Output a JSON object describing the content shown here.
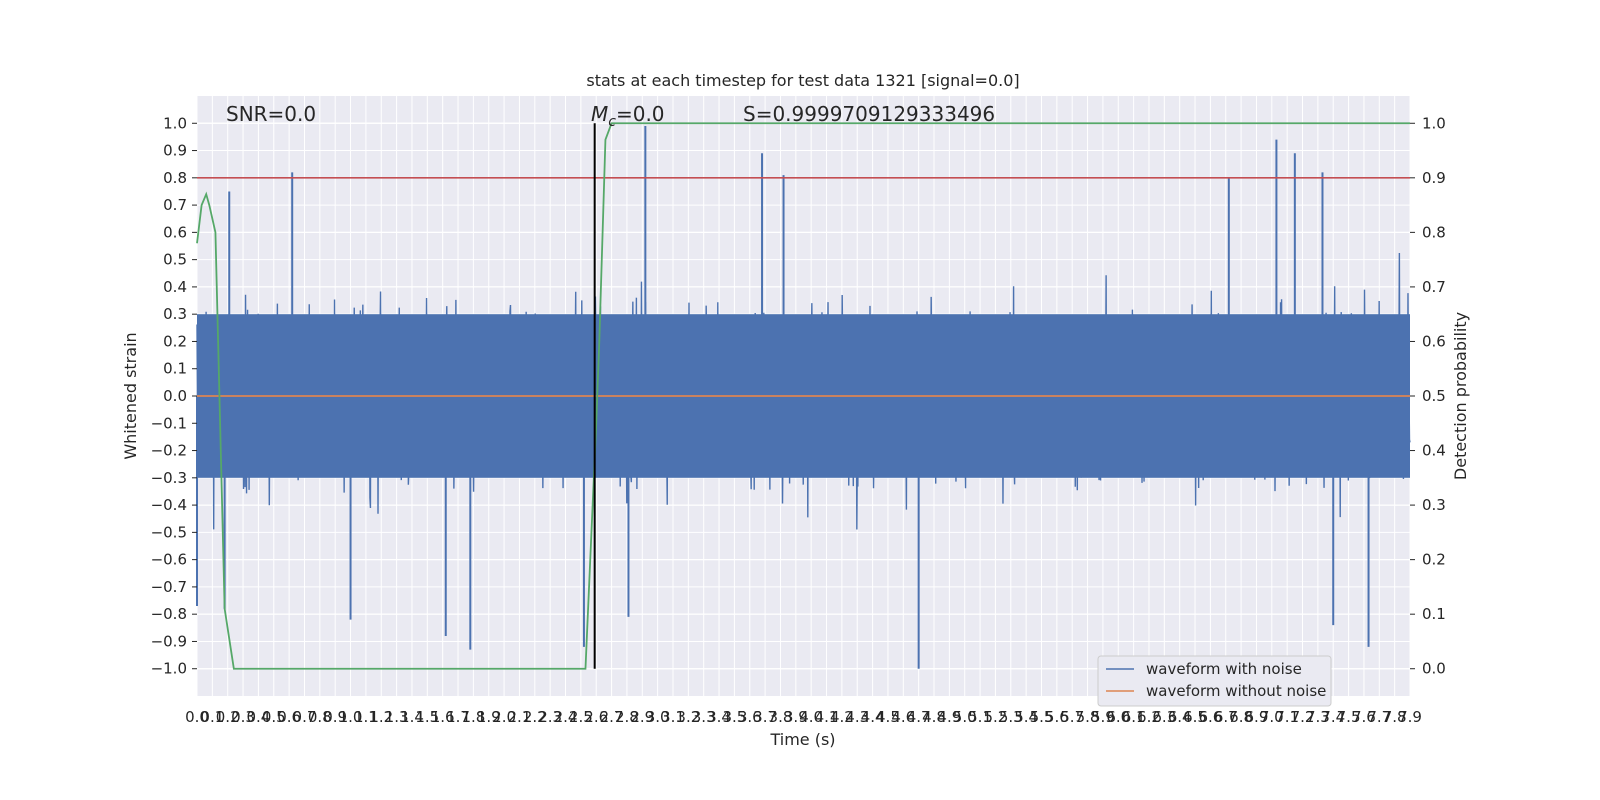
{
  "chart_data": {
    "type": "line",
    "title": "stats at each timestep for test data 1321 [signal=0.0]",
    "xlabel": "Time (s)",
    "ylabel": "Whitened strain",
    "y2label": "Detection probability",
    "xlim": [
      0.0,
      7.9
    ],
    "ylim": [
      -1.1,
      1.1
    ],
    "y2lim": [
      -0.05,
      1.05
    ],
    "x_ticks": [
      0.0,
      0.1,
      0.2,
      0.3,
      0.4,
      0.5,
      0.6,
      0.7,
      0.8,
      0.9,
      1.0,
      1.1,
      1.2,
      1.3,
      1.4,
      1.5,
      1.6,
      1.7,
      1.8,
      1.9,
      2.0,
      2.1,
      2.2,
      2.3,
      2.4,
      2.5,
      2.6,
      2.7,
      2.8,
      2.9,
      3.0,
      3.1,
      3.2,
      3.3,
      3.4,
      3.5,
      3.6,
      3.7,
      3.8,
      3.9,
      4.0,
      4.1,
      4.2,
      4.3,
      4.4,
      4.5,
      4.6,
      4.7,
      4.8,
      4.9,
      5.0,
      5.1,
      5.2,
      5.3,
      5.4,
      5.5,
      5.6,
      5.7,
      5.8,
      5.9,
      6.0,
      6.1,
      6.2,
      6.3,
      6.4,
      6.5,
      6.6,
      6.7,
      6.8,
      6.9,
      7.0,
      7.1,
      7.2,
      7.3,
      7.4,
      7.5,
      7.6,
      7.7,
      7.8,
      7.9
    ],
    "x_tick_labels": [
      "0.0",
      "0.1",
      "0.2",
      "0.3",
      "0.4",
      "0.5",
      "0.6",
      "0.7",
      "0.8",
      "0.9",
      "1.0",
      "1.1",
      "1.2",
      "1.3",
      "1.4",
      "1.5",
      "1.6",
      "1.7",
      "1.8",
      "1.9",
      "2.0",
      "2.1",
      "2.2",
      "2.3",
      "2.4",
      "2.5",
      "2.6",
      "2.7",
      "2.8",
      "2.9",
      "3.0",
      "3.1",
      "3.2",
      "3.3",
      "3.4",
      "3.5",
      "3.6",
      "3.7",
      "3.8",
      "3.9",
      "4.0",
      "4.1",
      "4.2",
      "4.3",
      "4.4",
      "4.5",
      "4.6",
      "4.7",
      "4.8",
      "4.9",
      "5.0",
      "5.1",
      "5.2",
      "5.3",
      "5.4",
      "5.5",
      "5.6",
      "5.7",
      "5.8",
      "5.9",
      "6.0",
      "6.1",
      "6.2",
      "6.3",
      "6.4",
      "6.5",
      "6.6",
      "6.7",
      "6.8",
      "6.9",
      "7.0",
      "7.1",
      "7.2",
      "7.3",
      "7.4",
      "7.5",
      "7.6",
      "7.7",
      "7.8",
      "7.9"
    ],
    "y_ticks": [
      -1.0,
      -0.9,
      -0.8,
      -0.7,
      -0.6,
      -0.5,
      -0.4,
      -0.3,
      -0.2,
      -0.1,
      0.0,
      0.1,
      0.2,
      0.3,
      0.4,
      0.5,
      0.6,
      0.7,
      0.8,
      0.9,
      1.0
    ],
    "y_tick_labels": [
      "−1.0",
      "−0.9",
      "−0.8",
      "−0.7",
      "−0.6",
      "−0.5",
      "−0.4",
      "−0.3",
      "−0.2",
      "−0.1",
      "0.0",
      "0.1",
      "0.2",
      "0.3",
      "0.4",
      "0.5",
      "0.6",
      "0.7",
      "0.8",
      "0.9",
      "1.0"
    ],
    "y2_ticks": [
      0.0,
      0.1,
      0.2,
      0.3,
      0.4,
      0.5,
      0.6,
      0.7,
      0.8,
      0.9,
      1.0
    ],
    "y2_tick_labels": [
      "0.0",
      "0.1",
      "0.2",
      "0.3",
      "0.4",
      "0.5",
      "0.6",
      "0.7",
      "0.8",
      "0.9",
      "1.0"
    ],
    "grid": true,
    "legend_position": "bottom-right",
    "annotations": {
      "snr": "SNR=0.0",
      "mc": "=0.0",
      "mc_symbol": "M",
      "mc_subscript": "c",
      "s": "S=0.9999709129333496"
    },
    "series": [
      {
        "name": "waveform with noise",
        "color": "#4c72b0",
        "kind": "noise",
        "amplitude_range": [
          -1.0,
          1.0
        ],
        "spikes": [
          {
            "x": 0.62,
            "y": 0.82
          },
          {
            "x": 2.92,
            "y": 0.99
          },
          {
            "x": 3.68,
            "y": 0.89
          },
          {
            "x": 3.82,
            "y": 0.81
          },
          {
            "x": 6.72,
            "y": 0.8
          },
          {
            "x": 7.03,
            "y": 0.94
          },
          {
            "x": 7.15,
            "y": 0.89
          },
          {
            "x": 7.33,
            "y": 0.82
          },
          {
            "x": 0.21,
            "y": 0.75
          },
          {
            "x": 4.7,
            "y": -1.0
          },
          {
            "x": 1.62,
            "y": -0.88
          },
          {
            "x": 1.78,
            "y": -0.93
          },
          {
            "x": 2.52,
            "y": -0.92
          },
          {
            "x": 7.63,
            "y": -0.92
          },
          {
            "x": 0.18,
            "y": -0.78
          },
          {
            "x": 0.0,
            "y": -0.77
          },
          {
            "x": 1.0,
            "y": -0.82
          },
          {
            "x": 2.81,
            "y": -0.81
          },
          {
            "x": 7.4,
            "y": -0.84
          }
        ]
      },
      {
        "name": "waveform without noise",
        "color": "#dd8452",
        "x": [
          0.0,
          7.9
        ],
        "y": [
          0.0,
          0.0
        ]
      },
      {
        "name": "detection probability",
        "color": "#55a868",
        "axis": "right",
        "x": [
          0.0,
          0.03,
          0.06,
          0.08,
          0.12,
          0.18,
          0.24,
          2.53,
          2.6,
          2.62,
          2.66,
          2.7,
          7.9
        ],
        "y": [
          0.78,
          0.85,
          0.87,
          0.85,
          0.8,
          0.11,
          0.0,
          0.0,
          0.45,
          0.6,
          0.97,
          1.0,
          1.0
        ]
      }
    ],
    "hlines": [
      {
        "y2": 0.9,
        "color": "#c44e52"
      }
    ],
    "vlines": [
      {
        "x": 2.59,
        "ymin": -1.0,
        "ymax": 1.0,
        "color": "#000000"
      }
    ]
  }
}
